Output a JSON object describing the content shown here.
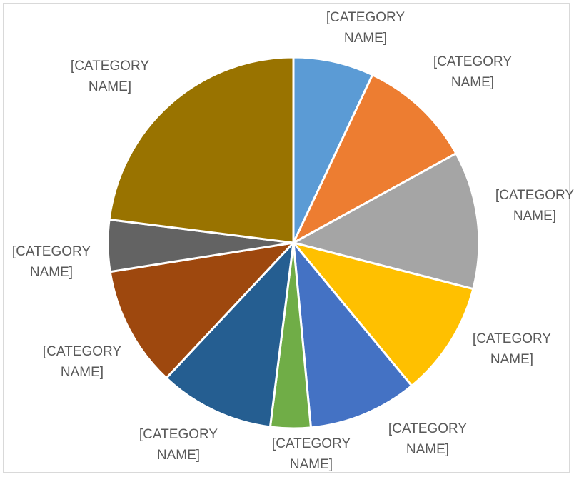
{
  "chart_data": {
    "type": "pie",
    "title": "",
    "legend": "none",
    "slices": [
      {
        "label": "[CATEGORY NAME]",
        "value": 7,
        "color": "#5B9BD5"
      },
      {
        "label": "[CATEGORY NAME]",
        "value": 10,
        "color": "#ED7D31"
      },
      {
        "label": "[CATEGORY NAME]",
        "value": 12,
        "color": "#A5A5A5"
      },
      {
        "label": "[CATEGORY NAME]",
        "value": 10,
        "color": "#FFC000"
      },
      {
        "label": "[CATEGORY NAME]",
        "value": 9.5,
        "color": "#4472C4"
      },
      {
        "label": "[CATEGORY NAME]",
        "value": 3.5,
        "color": "#70AD47"
      },
      {
        "label": "[CATEGORY NAME]",
        "value": 10,
        "color": "#255E91"
      },
      {
        "label": "[CATEGORY NAME]",
        "value": 10.5,
        "color": "#9E480E"
      },
      {
        "label": "[CATEGORY NAME]",
        "value": 4.5,
        "color": "#636363"
      },
      {
        "label": "[CATEGORY NAME]",
        "value": 23,
        "color": "#997300"
      }
    ]
  }
}
